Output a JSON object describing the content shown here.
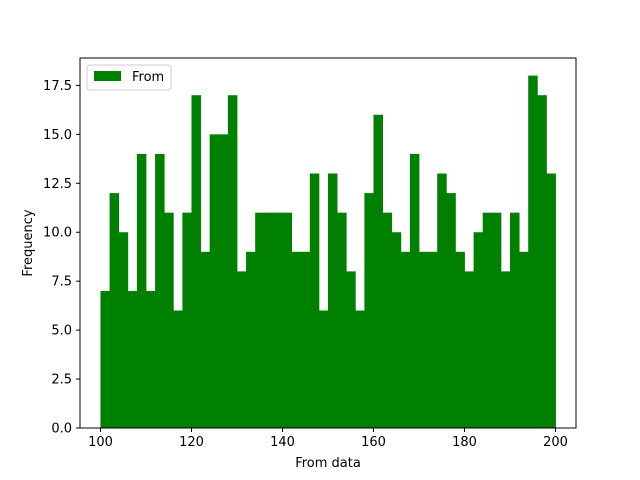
{
  "chart_data": {
    "type": "bar",
    "title": "",
    "xlabel": "From data",
    "ylabel": "Frequency",
    "xlim": [
      95.5,
      204.5
    ],
    "ylim": [
      0,
      18.9
    ],
    "bin_start": 100,
    "bin_width": 2,
    "bar_color": "#008000",
    "legend": {
      "label": "From",
      "position": "top-left"
    },
    "grid": false,
    "x_ticks": [
      "100",
      "120",
      "140",
      "160",
      "180",
      "200"
    ],
    "y_ticks": [
      "0.0",
      "2.5",
      "5.0",
      "7.5",
      "10.0",
      "12.5",
      "15.0",
      "17.5"
    ],
    "values": [
      7,
      12,
      10,
      7,
      14,
      7,
      14,
      11,
      6,
      11,
      17,
      9,
      15,
      15,
      17,
      8,
      9,
      11,
      11,
      11,
      11,
      9,
      9,
      13,
      6,
      13,
      11,
      8,
      6,
      12,
      16,
      11,
      10,
      9,
      14,
      9,
      9,
      13,
      12,
      9,
      8,
      10,
      11,
      11,
      8,
      11,
      9,
      18,
      17,
      13
    ]
  }
}
